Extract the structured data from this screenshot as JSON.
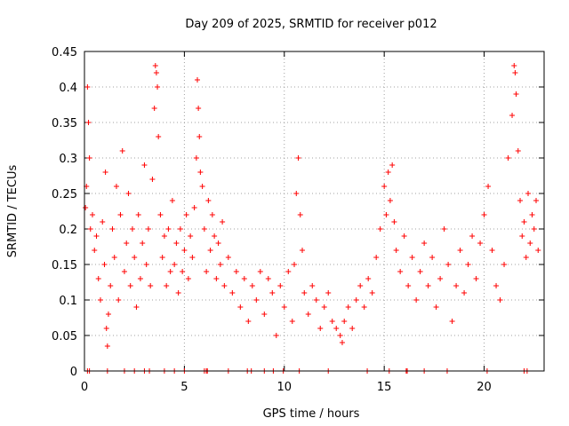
{
  "chart_data": {
    "type": "scatter",
    "title": "Day 209 of 2025, SRMTID for receiver p012",
    "xlabel": "GPS time / hours",
    "ylabel": "SRMTID / TECUs",
    "xlim": [
      0,
      23
    ],
    "ylim": [
      0,
      0.45
    ],
    "x_ticks": [
      0,
      5,
      10,
      15,
      20
    ],
    "x_tick_labels": [
      "0",
      "5",
      "10",
      "15",
      "20"
    ],
    "y_ticks": [
      0,
      0.05,
      0.1,
      0.15,
      0.2,
      0.25,
      0.3,
      0.35,
      0.4,
      0.45
    ],
    "y_tick_labels": [
      "0",
      "0.05",
      "0.1",
      "0.15",
      "0.2",
      "0.25",
      "0.3",
      "0.35",
      "0.4",
      "0.45"
    ],
    "grid": true,
    "marker": "+",
    "color": "#ff0000",
    "series": [
      {
        "name": "SRMTID",
        "points": [
          [
            0.05,
            0.23
          ],
          [
            0.1,
            0.26
          ],
          [
            0.15,
            0.4
          ],
          [
            0.2,
            0.35
          ],
          [
            0.25,
            0.3
          ],
          [
            0.3,
            0.2
          ],
          [
            0.4,
            0.22
          ],
          [
            0.5,
            0.17
          ],
          [
            0.6,
            0.19
          ],
          [
            0.7,
            0.13
          ],
          [
            0.8,
            0.1
          ],
          [
            0.9,
            0.21
          ],
          [
            1.0,
            0.15
          ],
          [
            1.05,
            0.28
          ],
          [
            1.1,
            0.06
          ],
          [
            1.15,
            0.035
          ],
          [
            1.2,
            0.08
          ],
          [
            1.3,
            0.12
          ],
          [
            1.4,
            0.2
          ],
          [
            1.5,
            0.16
          ],
          [
            1.6,
            0.26
          ],
          [
            1.7,
            0.1
          ],
          [
            1.8,
            0.22
          ],
          [
            1.9,
            0.31
          ],
          [
            2.0,
            0.14
          ],
          [
            2.1,
            0.18
          ],
          [
            2.2,
            0.25
          ],
          [
            2.3,
            0.12
          ],
          [
            2.4,
            0.2
          ],
          [
            2.5,
            0.16
          ],
          [
            2.6,
            0.09
          ],
          [
            2.7,
            0.22
          ],
          [
            2.8,
            0.13
          ],
          [
            2.9,
            0.18
          ],
          [
            3.0,
            0.29
          ],
          [
            3.1,
            0.15
          ],
          [
            3.2,
            0.2
          ],
          [
            3.3,
            0.12
          ],
          [
            3.4,
            0.27
          ],
          [
            3.5,
            0.37
          ],
          [
            3.55,
            0.43
          ],
          [
            3.6,
            0.42
          ],
          [
            3.65,
            0.4
          ],
          [
            3.7,
            0.33
          ],
          [
            3.8,
            0.22
          ],
          [
            3.9,
            0.16
          ],
          [
            4.0,
            0.19
          ],
          [
            4.1,
            0.12
          ],
          [
            4.2,
            0.2
          ],
          [
            4.3,
            0.14
          ],
          [
            4.4,
            0.24
          ],
          [
            4.5,
            0.15
          ],
          [
            4.6,
            0.18
          ],
          [
            4.7,
            0.11
          ],
          [
            4.8,
            0.2
          ],
          [
            4.9,
            0.14
          ],
          [
            5.0,
            0.17
          ],
          [
            5.1,
            0.22
          ],
          [
            5.2,
            0.13
          ],
          [
            5.3,
            0.19
          ],
          [
            5.4,
            0.16
          ],
          [
            5.5,
            0.23
          ],
          [
            5.6,
            0.3
          ],
          [
            5.65,
            0.41
          ],
          [
            5.7,
            0.37
          ],
          [
            5.75,
            0.33
          ],
          [
            5.8,
            0.28
          ],
          [
            5.9,
            0.26
          ],
          [
            6.0,
            0.2
          ],
          [
            6.1,
            0.14
          ],
          [
            6.2,
            0.24
          ],
          [
            6.3,
            0.17
          ],
          [
            6.4,
            0.22
          ],
          [
            6.5,
            0.19
          ],
          [
            6.6,
            0.13
          ],
          [
            6.7,
            0.18
          ],
          [
            6.8,
            0.15
          ],
          [
            6.9,
            0.21
          ],
          [
            7.0,
            0.12
          ],
          [
            7.2,
            0.16
          ],
          [
            7.4,
            0.11
          ],
          [
            7.6,
            0.14
          ],
          [
            7.8,
            0.09
          ],
          [
            8.0,
            0.13
          ],
          [
            8.2,
            0.07
          ],
          [
            8.4,
            0.12
          ],
          [
            8.6,
            0.1
          ],
          [
            8.8,
            0.14
          ],
          [
            9.0,
            0.08
          ],
          [
            9.2,
            0.13
          ],
          [
            9.4,
            0.11
          ],
          [
            9.6,
            0.05
          ],
          [
            9.8,
            0.12
          ],
          [
            10.0,
            0.09
          ],
          [
            10.2,
            0.14
          ],
          [
            10.4,
            0.07
          ],
          [
            10.5,
            0.15
          ],
          [
            10.6,
            0.25
          ],
          [
            10.7,
            0.3
          ],
          [
            10.8,
            0.22
          ],
          [
            10.9,
            0.17
          ],
          [
            11.0,
            0.11
          ],
          [
            11.2,
            0.08
          ],
          [
            11.4,
            0.12
          ],
          [
            11.6,
            0.1
          ],
          [
            11.8,
            0.06
          ],
          [
            12.0,
            0.09
          ],
          [
            12.2,
            0.11
          ],
          [
            12.4,
            0.07
          ],
          [
            12.6,
            0.06
          ],
          [
            12.8,
            0.05
          ],
          [
            12.9,
            0.04
          ],
          [
            13.0,
            0.07
          ],
          [
            13.2,
            0.09
          ],
          [
            13.4,
            0.06
          ],
          [
            13.6,
            0.1
          ],
          [
            13.8,
            0.12
          ],
          [
            14.0,
            0.09
          ],
          [
            14.2,
            0.13
          ],
          [
            14.4,
            0.11
          ],
          [
            14.6,
            0.16
          ],
          [
            14.8,
            0.2
          ],
          [
            15.0,
            0.26
          ],
          [
            15.1,
            0.22
          ],
          [
            15.2,
            0.28
          ],
          [
            15.3,
            0.24
          ],
          [
            15.4,
            0.29
          ],
          [
            15.5,
            0.21
          ],
          [
            15.6,
            0.17
          ],
          [
            15.8,
            0.14
          ],
          [
            16.0,
            0.19
          ],
          [
            16.2,
            0.12
          ],
          [
            16.4,
            0.16
          ],
          [
            16.6,
            0.1
          ],
          [
            16.8,
            0.14
          ],
          [
            17.0,
            0.18
          ],
          [
            17.2,
            0.12
          ],
          [
            17.4,
            0.16
          ],
          [
            17.6,
            0.09
          ],
          [
            17.8,
            0.13
          ],
          [
            18.0,
            0.2
          ],
          [
            18.2,
            0.15
          ],
          [
            18.4,
            0.07
          ],
          [
            18.6,
            0.12
          ],
          [
            18.8,
            0.17
          ],
          [
            19.0,
            0.11
          ],
          [
            19.2,
            0.15
          ],
          [
            19.4,
            0.19
          ],
          [
            19.6,
            0.13
          ],
          [
            19.8,
            0.18
          ],
          [
            20.0,
            0.22
          ],
          [
            20.2,
            0.26
          ],
          [
            20.4,
            0.17
          ],
          [
            20.6,
            0.12
          ],
          [
            20.8,
            0.1
          ],
          [
            21.0,
            0.15
          ],
          [
            21.2,
            0.3
          ],
          [
            21.4,
            0.36
          ],
          [
            21.5,
            0.43
          ],
          [
            21.55,
            0.42
          ],
          [
            21.6,
            0.39
          ],
          [
            21.7,
            0.31
          ],
          [
            21.8,
            0.24
          ],
          [
            21.9,
            0.19
          ],
          [
            22.0,
            0.21
          ],
          [
            22.1,
            0.16
          ],
          [
            22.2,
            0.25
          ],
          [
            22.3,
            0.18
          ],
          [
            22.4,
            0.22
          ],
          [
            22.5,
            0.2
          ],
          [
            22.6,
            0.24
          ],
          [
            22.7,
            0.17
          ]
        ]
      }
    ],
    "zero_points": [
      0.15,
      0.25,
      1.15,
      2.0,
      2.5,
      3.0,
      3.25,
      4.0,
      4.5,
      5.0,
      6.0,
      6.1,
      6.15,
      7.2,
      8.15,
      8.35,
      9.0,
      9.45,
      9.95,
      10.75,
      12.2,
      14.15,
      15.25,
      16.1,
      16.15,
      17.0,
      18.15,
      20.15,
      22.0,
      22.15
    ]
  }
}
